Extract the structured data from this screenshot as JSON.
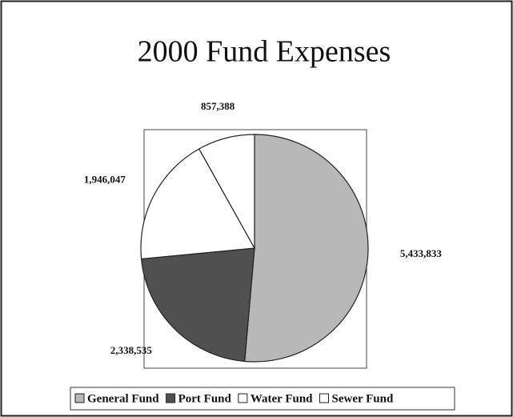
{
  "chart_data": {
    "type": "pie",
    "title": "2000 Fund Expenses",
    "categories": [
      "General Fund",
      "Port Fund",
      "Water Fund",
      "Sewer Fund"
    ],
    "values": [
      5433833,
      2338535,
      1946047,
      857388
    ],
    "value_labels": [
      "5,433,833",
      "2,338,535",
      "1,946,047",
      "857,388"
    ],
    "colors": [
      "#b8b8b8",
      "#505050",
      "#ffffff",
      "#ffffff"
    ]
  }
}
